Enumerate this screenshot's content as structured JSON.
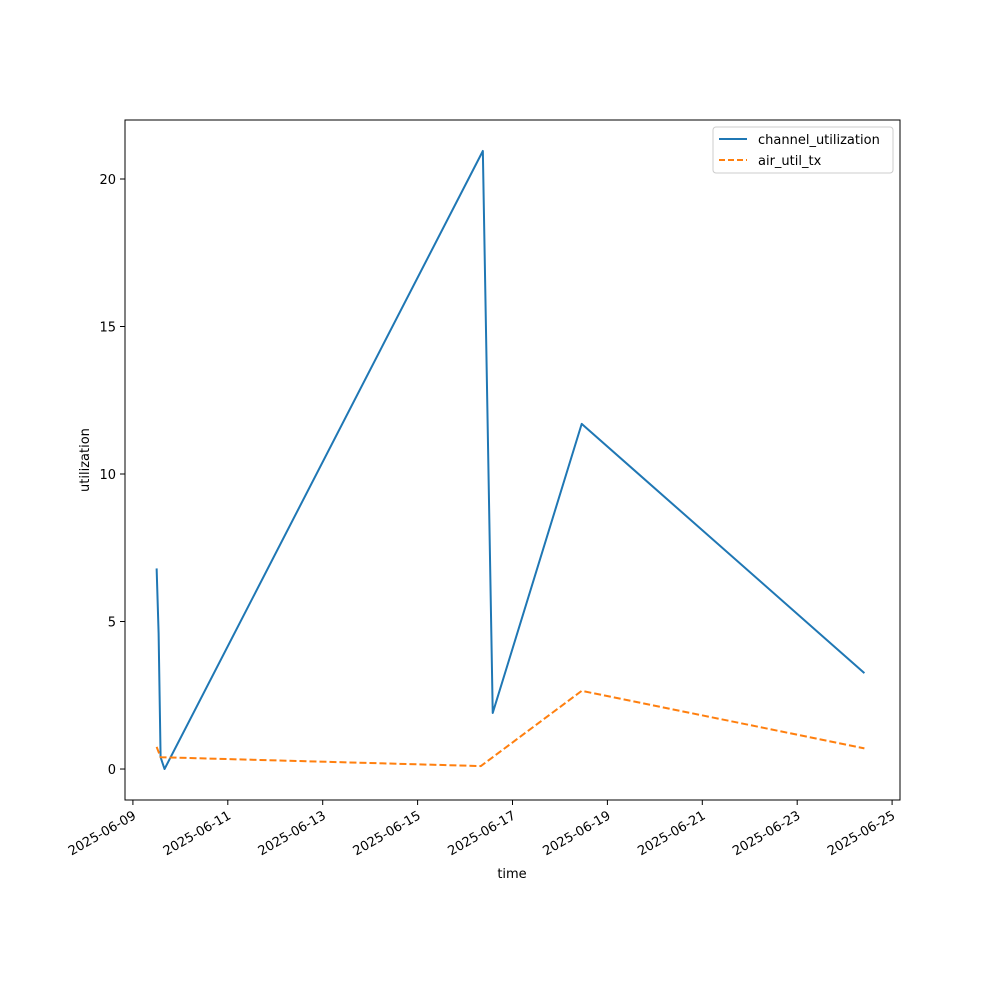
{
  "chart_data": {
    "type": "line",
    "title": "",
    "xlabel": "time",
    "ylabel": "utilization",
    "x_type": "date",
    "xlim": [
      "2025-06-08T20:00",
      "2025-06-25T04:00"
    ],
    "ylim": [
      -1.05,
      22.0
    ],
    "x_ticks": [
      "2025-06-09",
      "2025-06-11",
      "2025-06-13",
      "2025-06-15",
      "2025-06-17",
      "2025-06-19",
      "2025-06-21",
      "2025-06-23",
      "2025-06-25"
    ],
    "y_ticks": [
      0,
      5,
      10,
      15,
      20
    ],
    "grid": false,
    "legend": "top-right",
    "series": [
      {
        "name": "channel_utilization",
        "color": "#1f77b4",
        "style": "solid",
        "points": [
          {
            "x": "2025-06-09T12:00",
            "y": 6.8
          },
          {
            "x": "2025-06-09T13:00",
            "y": 4.6
          },
          {
            "x": "2025-06-09T14:00",
            "y": 0.4
          },
          {
            "x": "2025-06-09T16:00",
            "y": 0.0
          },
          {
            "x": "2025-06-16T09:00",
            "y": 20.95
          },
          {
            "x": "2025-06-16T14:00",
            "y": 1.9
          },
          {
            "x": "2025-06-18T11:00",
            "y": 11.7
          },
          {
            "x": "2025-06-24T10:00",
            "y": 3.25
          }
        ]
      },
      {
        "name": "air_util_tx",
        "color": "#ff7f0e",
        "style": "dashed",
        "points": [
          {
            "x": "2025-06-09T12:00",
            "y": 0.75
          },
          {
            "x": "2025-06-09T14:00",
            "y": 0.4
          },
          {
            "x": "2025-06-16T08:00",
            "y": 0.1
          },
          {
            "x": "2025-06-18T11:00",
            "y": 2.65
          },
          {
            "x": "2025-06-24T10:00",
            "y": 0.7
          }
        ]
      }
    ]
  }
}
